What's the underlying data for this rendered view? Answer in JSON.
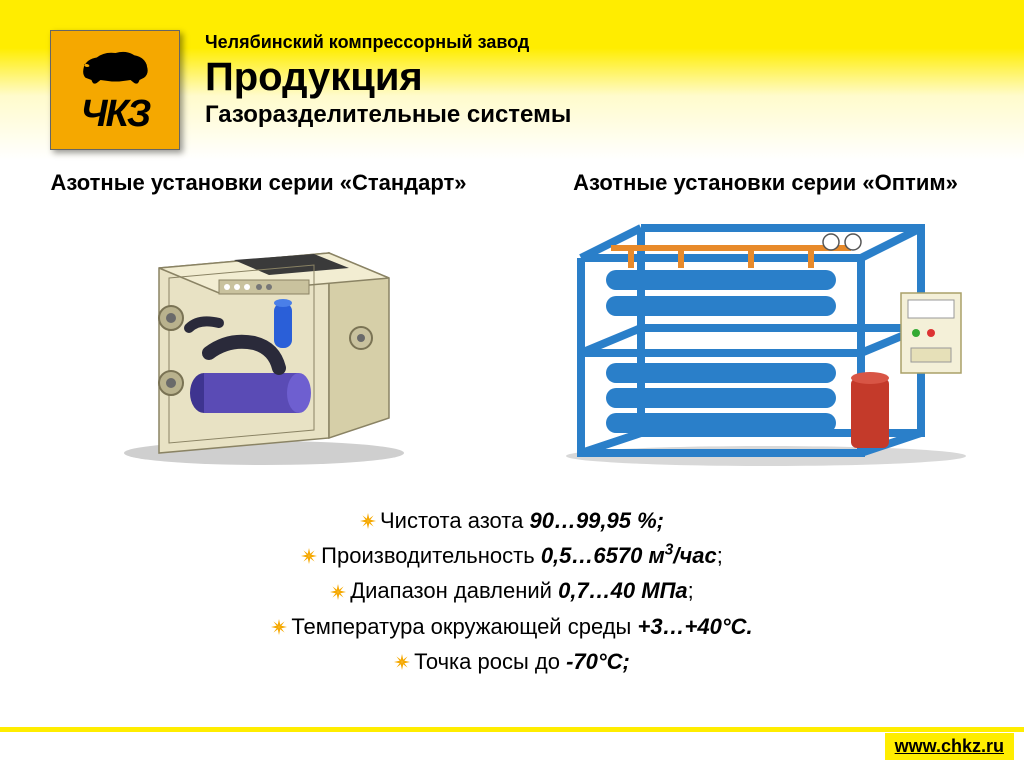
{
  "header": {
    "logo_text": "ЧКЗ",
    "company": "Челябинский компрессорный завод",
    "title": "Продукция",
    "subtitle": "Газоразделительные системы"
  },
  "columns": {
    "left_title": "Азотные установки серии «Стандарт»",
    "right_title": "Азотные установки серии «Оптим»"
  },
  "specs": [
    {
      "label": "Чистота азота ",
      "value": "90…99,95 %;"
    },
    {
      "label": "Производительность ",
      "value": "0,5…6570 м",
      "sup": "3",
      "tail": "/час",
      "after": ";"
    },
    {
      "label": "Диапазон давлений ",
      "value": "0,7…40 МПа",
      "after": ";"
    },
    {
      "label": "Температура окружающей среды ",
      "value": "+3…+40°С."
    },
    {
      "label": "Точка росы до ",
      "value": "-70°С;"
    }
  ],
  "colors": {
    "accent": "#ffed00",
    "logo_bg": "#f5a800",
    "bullet_orange": "#f5a800",
    "frame_blue": "#2a7fc9",
    "cabinet_tan": "#e8e2c4",
    "pipe_purple": "#5a4bb5"
  },
  "footer": {
    "url": "www.chkz.ru"
  }
}
